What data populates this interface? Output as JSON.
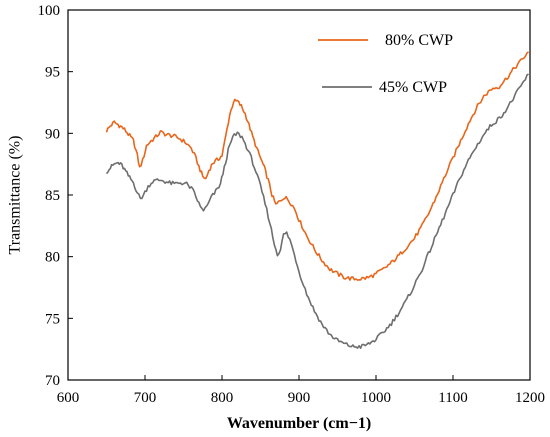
{
  "chart_data": {
    "type": "line",
    "title": "",
    "xlabel": "Wavenumber (cm−1)",
    "ylabel": "Transmittance (%)",
    "xlim": [
      600,
      1200
    ],
    "ylim": [
      70,
      100
    ],
    "xticks": [
      600,
      700,
      800,
      900,
      1000,
      1100,
      1200
    ],
    "yticks": [
      70,
      75,
      80,
      85,
      90,
      95,
      100
    ],
    "grid": false,
    "legend_position": "top-right",
    "series": [
      {
        "name": "80% CWP",
        "color": "#e8661a",
        "points": [
          [
            650,
            90.2
          ],
          [
            655,
            90.6
          ],
          [
            660,
            90.9
          ],
          [
            665,
            90.7
          ],
          [
            670,
            90.5
          ],
          [
            675,
            90.2
          ],
          [
            680,
            89.8
          ],
          [
            685,
            89.4
          ],
          [
            690,
            88.2
          ],
          [
            693,
            87.2
          ],
          [
            697,
            87.8
          ],
          [
            702,
            89.0
          ],
          [
            708,
            89.4
          ],
          [
            714,
            89.7
          ],
          [
            720,
            90.1
          ],
          [
            728,
            89.9
          ],
          [
            736,
            89.8
          ],
          [
            744,
            89.6
          ],
          [
            752,
            89.3
          ],
          [
            760,
            88.8
          ],
          [
            766,
            88.0
          ],
          [
            770,
            87.3
          ],
          [
            775,
            86.5
          ],
          [
            779,
            86.3
          ],
          [
            783,
            87.0
          ],
          [
            788,
            87.6
          ],
          [
            795,
            87.9
          ],
          [
            800,
            88.2
          ],
          [
            805,
            89.8
          ],
          [
            810,
            91.5
          ],
          [
            815,
            92.6
          ],
          [
            820,
            92.6
          ],
          [
            825,
            92.2
          ],
          [
            830,
            91.6
          ],
          [
            835,
            90.7
          ],
          [
            840,
            89.7
          ],
          [
            845,
            88.8
          ],
          [
            850,
            88.0
          ],
          [
            855,
            87.2
          ],
          [
            860,
            86.2
          ],
          [
            865,
            85.0
          ],
          [
            870,
            84.2
          ],
          [
            875,
            84.5
          ],
          [
            880,
            84.8
          ],
          [
            885,
            84.7
          ],
          [
            890,
            84.3
          ],
          [
            895,
            83.8
          ],
          [
            900,
            83.0
          ],
          [
            910,
            81.7
          ],
          [
            920,
            80.6
          ],
          [
            930,
            79.7
          ],
          [
            940,
            79.0
          ],
          [
            950,
            78.6
          ],
          [
            960,
            78.3
          ],
          [
            970,
            78.2
          ],
          [
            980,
            78.2
          ],
          [
            990,
            78.3
          ],
          [
            1000,
            78.6
          ],
          [
            1010,
            79.0
          ],
          [
            1020,
            79.5
          ],
          [
            1030,
            80.1
          ],
          [
            1040,
            80.8
          ],
          [
            1050,
            81.5
          ],
          [
            1060,
            82.5
          ],
          [
            1070,
            83.7
          ],
          [
            1080,
            85.1
          ],
          [
            1090,
            86.6
          ],
          [
            1100,
            88.0
          ],
          [
            1110,
            89.4
          ],
          [
            1120,
            90.8
          ],
          [
            1130,
            92.0
          ],
          [
            1140,
            93.0
          ],
          [
            1150,
            93.6
          ],
          [
            1160,
            93.8
          ],
          [
            1170,
            94.5
          ],
          [
            1180,
            95.3
          ],
          [
            1190,
            96.0
          ],
          [
            1198,
            96.6
          ]
        ]
      },
      {
        "name": "45% CWP",
        "color": "#6e6e6e",
        "points": [
          [
            650,
            86.9
          ],
          [
            655,
            87.2
          ],
          [
            660,
            87.5
          ],
          [
            665,
            87.6
          ],
          [
            670,
            87.4
          ],
          [
            675,
            86.9
          ],
          [
            680,
            86.4
          ],
          [
            685,
            86.0
          ],
          [
            690,
            85.2
          ],
          [
            694,
            84.7
          ],
          [
            698,
            85.0
          ],
          [
            704,
            85.7
          ],
          [
            710,
            86.1
          ],
          [
            716,
            86.2
          ],
          [
            722,
            86.2
          ],
          [
            730,
            86.0
          ],
          [
            738,
            85.9
          ],
          [
            746,
            86.0
          ],
          [
            754,
            85.9
          ],
          [
            762,
            85.4
          ],
          [
            768,
            84.6
          ],
          [
            772,
            84.0
          ],
          [
            776,
            83.8
          ],
          [
            780,
            84.0
          ],
          [
            786,
            84.8
          ],
          [
            792,
            85.3
          ],
          [
            798,
            85.9
          ],
          [
            803,
            87.2
          ],
          [
            808,
            88.6
          ],
          [
            814,
            89.7
          ],
          [
            820,
            90.0
          ],
          [
            826,
            89.7
          ],
          [
            832,
            88.9
          ],
          [
            838,
            88.0
          ],
          [
            844,
            86.9
          ],
          [
            850,
            85.7
          ],
          [
            856,
            84.3
          ],
          [
            862,
            82.8
          ],
          [
            868,
            81.0
          ],
          [
            872,
            80.2
          ],
          [
            876,
            80.6
          ],
          [
            880,
            81.8
          ],
          [
            884,
            81.9
          ],
          [
            888,
            81.4
          ],
          [
            894,
            80.2
          ],
          [
            900,
            78.8
          ],
          [
            910,
            77.0
          ],
          [
            920,
            75.6
          ],
          [
            930,
            74.5
          ],
          [
            940,
            73.7
          ],
          [
            950,
            73.2
          ],
          [
            960,
            72.9
          ],
          [
            970,
            72.7
          ],
          [
            980,
            72.7
          ],
          [
            990,
            72.9
          ],
          [
            1000,
            73.3
          ],
          [
            1010,
            73.9
          ],
          [
            1020,
            74.6
          ],
          [
            1030,
            75.5
          ],
          [
            1040,
            76.5
          ],
          [
            1050,
            77.7
          ],
          [
            1060,
            79.0
          ],
          [
            1070,
            80.5
          ],
          [
            1080,
            82.0
          ],
          [
            1090,
            83.5
          ],
          [
            1100,
            85.0
          ],
          [
            1110,
            86.5
          ],
          [
            1120,
            87.8
          ],
          [
            1130,
            88.9
          ],
          [
            1140,
            89.9
          ],
          [
            1150,
            90.7
          ],
          [
            1160,
            91.2
          ],
          [
            1170,
            92.0
          ],
          [
            1180,
            93.0
          ],
          [
            1190,
            94.0
          ],
          [
            1198,
            94.8
          ]
        ]
      }
    ]
  }
}
